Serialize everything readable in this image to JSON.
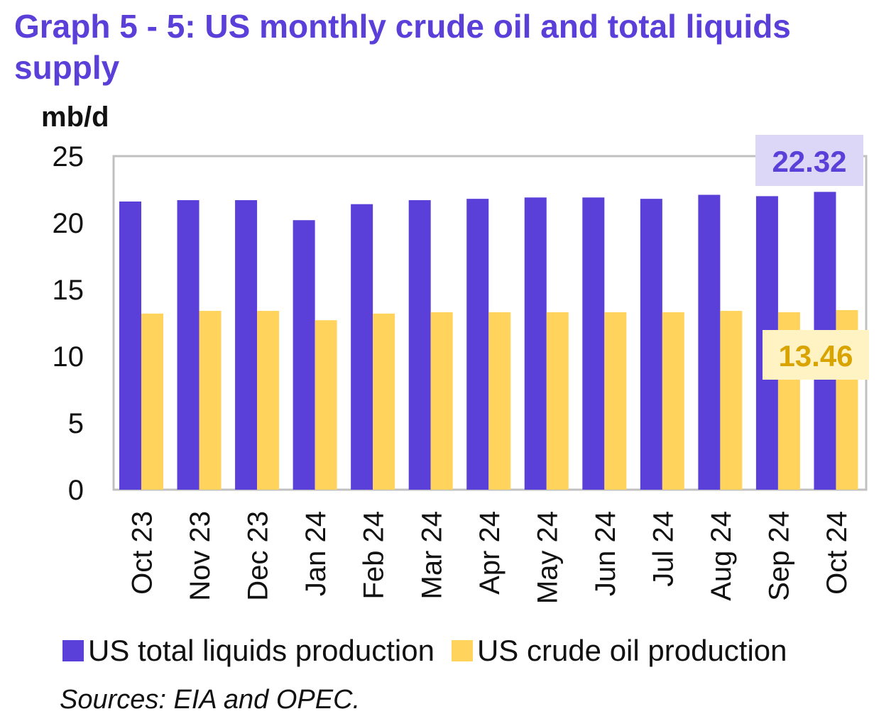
{
  "title": "Graph 5 - 5: US monthly crude oil and total liquids supply",
  "source": "Sources: EIA and OPEC.",
  "colors": {
    "title": "#5b3fd9",
    "total": "#5b3fd9",
    "crude": "#ffd35c",
    "total_label_bg": "#dcd6f7",
    "crude_label_bg": "#fff3c4",
    "crude_label_text": "#d9a400"
  },
  "chart_data": {
    "type": "bar",
    "ylabel": "mb/d",
    "ylim": [
      0,
      25
    ],
    "yticks": [
      0,
      5,
      10,
      15,
      20,
      25
    ],
    "grid": false,
    "legend_position": "bottom",
    "categories": [
      "Oct 23",
      "Nov 23",
      "Dec 23",
      "Jan 24",
      "Feb 24",
      "Mar 24",
      "Apr 24",
      "May 24",
      "Jun 24",
      "Jul 24",
      "Aug 24",
      "Sep 24",
      "Oct 24"
    ],
    "series": [
      {
        "name": "US total liquids production",
        "color": "#5b3fd9",
        "values": [
          21.6,
          21.7,
          21.7,
          20.2,
          21.4,
          21.7,
          21.8,
          21.9,
          21.9,
          21.8,
          22.1,
          22.0,
          22.32
        ]
      },
      {
        "name": "US crude oil production",
        "color": "#ffd35c",
        "values": [
          13.2,
          13.4,
          13.4,
          12.7,
          13.2,
          13.3,
          13.3,
          13.3,
          13.3,
          13.3,
          13.4,
          13.3,
          13.46
        ]
      }
    ],
    "annotations": [
      {
        "series": 0,
        "category": "Oct 24",
        "text": "22.32"
      },
      {
        "series": 1,
        "category": "Oct 24",
        "text": "13.46"
      }
    ]
  }
}
